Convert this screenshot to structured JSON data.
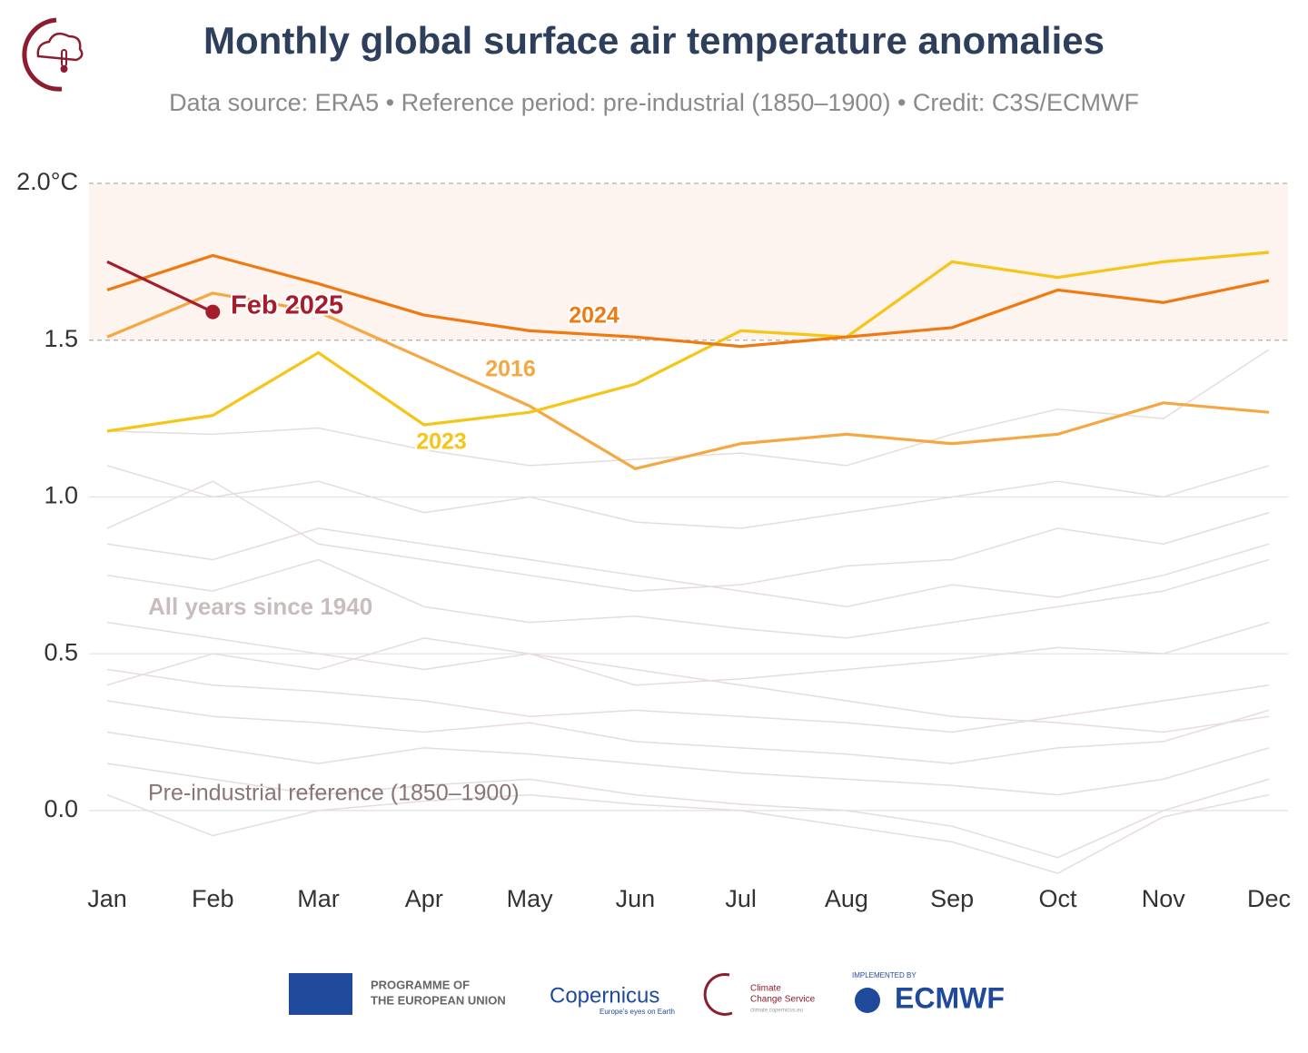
{
  "chart_data": {
    "type": "line",
    "title": "Monthly global surface air temperature anomalies",
    "subtitle": "Data source: ERA5 • Reference period: pre-industrial (1850–1900) • Credit: C3S/ECMWF",
    "categories": [
      "Jan",
      "Feb",
      "Mar",
      "Apr",
      "May",
      "Jun",
      "Jul",
      "Aug",
      "Sep",
      "Oct",
      "Nov",
      "Dec"
    ],
    "ylim": [
      -0.2,
      2.0
    ],
    "yticks": [
      {
        "value": 0.0,
        "label": "0.0"
      },
      {
        "value": 0.5,
        "label": "0.5"
      },
      {
        "value": 1.0,
        "label": "1.0"
      },
      1.5,
      {
        "value": 2.0,
        "label": "2.0°C"
      }
    ],
    "grid": true,
    "band": [
      1.5,
      2.0
    ],
    "annotations": [
      "All years since 1940",
      "Pre-industrial reference (1850–1900)"
    ],
    "background_color": "#e6dcdc",
    "background_series": [
      {
        "values": [
          1.21,
          1.2,
          1.22,
          1.15,
          1.1,
          1.12,
          1.14,
          1.1,
          1.2,
          1.28,
          1.25,
          1.47
        ]
      },
      {
        "values": [
          1.1,
          1.0,
          1.05,
          0.95,
          1.0,
          0.92,
          0.9,
          0.95,
          1.0,
          1.05,
          1.0,
          1.1
        ]
      },
      {
        "values": [
          0.9,
          1.05,
          0.85,
          0.8,
          0.75,
          0.7,
          0.72,
          0.78,
          0.8,
          0.9,
          0.85,
          0.95
        ]
      },
      {
        "values": [
          0.75,
          0.7,
          0.8,
          0.65,
          0.6,
          0.62,
          0.58,
          0.55,
          0.6,
          0.65,
          0.7,
          0.8
        ]
      },
      {
        "values": [
          0.6,
          0.55,
          0.5,
          0.45,
          0.5,
          0.4,
          0.42,
          0.45,
          0.48,
          0.52,
          0.5,
          0.6
        ]
      },
      {
        "values": [
          0.45,
          0.4,
          0.38,
          0.35,
          0.3,
          0.32,
          0.3,
          0.28,
          0.25,
          0.3,
          0.35,
          0.4
        ]
      },
      {
        "values": [
          0.35,
          0.3,
          0.28,
          0.25,
          0.28,
          0.22,
          0.2,
          0.18,
          0.15,
          0.2,
          0.22,
          0.32
        ]
      },
      {
        "values": [
          0.25,
          0.2,
          0.15,
          0.2,
          0.18,
          0.15,
          0.12,
          0.1,
          0.08,
          0.05,
          0.1,
          0.2
        ]
      },
      {
        "values": [
          0.15,
          0.1,
          0.05,
          0.08,
          0.1,
          0.05,
          0.02,
          0.0,
          -0.05,
          -0.15,
          0.0,
          0.1
        ]
      },
      {
        "values": [
          0.05,
          -0.08,
          0.0,
          0.03,
          0.05,
          0.02,
          0.0,
          -0.05,
          -0.1,
          -0.2,
          -0.02,
          0.05
        ]
      },
      {
        "values": [
          0.4,
          0.5,
          0.45,
          0.55,
          0.5,
          0.45,
          0.4,
          0.35,
          0.3,
          0.28,
          0.25,
          0.3
        ]
      },
      {
        "values": [
          0.85,
          0.8,
          0.9,
          0.85,
          0.8,
          0.75,
          0.7,
          0.65,
          0.72,
          0.68,
          0.75,
          0.85
        ]
      }
    ],
    "series": [
      {
        "name": "2016",
        "color": "#f5a742",
        "values": [
          1.51,
          1.65,
          1.59,
          1.44,
          1.29,
          1.09,
          1.17,
          1.2,
          1.17,
          1.2,
          1.3,
          1.27
        ]
      },
      {
        "name": "2023",
        "color": "#f5c518",
        "values": [
          1.21,
          1.26,
          1.46,
          1.23,
          1.27,
          1.36,
          1.53,
          1.51,
          1.75,
          1.7,
          1.75,
          1.78
        ]
      },
      {
        "name": "2024",
        "color": "#f07a12",
        "values": [
          1.66,
          1.77,
          1.68,
          1.58,
          1.53,
          1.51,
          1.48,
          1.51,
          1.54,
          1.66,
          1.62,
          1.69
        ]
      },
      {
        "name": "Feb 2025",
        "color": "#a51d2d",
        "values": [
          1.75,
          1.59,
          null,
          null,
          null,
          null,
          null,
          null,
          null,
          null,
          null,
          null
        ]
      }
    ],
    "footer": {
      "eu": [
        "PROGRAMME OF",
        "THE EUROPEAN UNION"
      ],
      "copernicus": [
        "Copernicus",
        "Europe's eyes on Earth"
      ],
      "c3s": [
        "Climate",
        "Change Service",
        "climate.copernicus.eu"
      ],
      "ecmwf": [
        "IMPLEMENTED BY",
        "ECMWF"
      ]
    }
  }
}
